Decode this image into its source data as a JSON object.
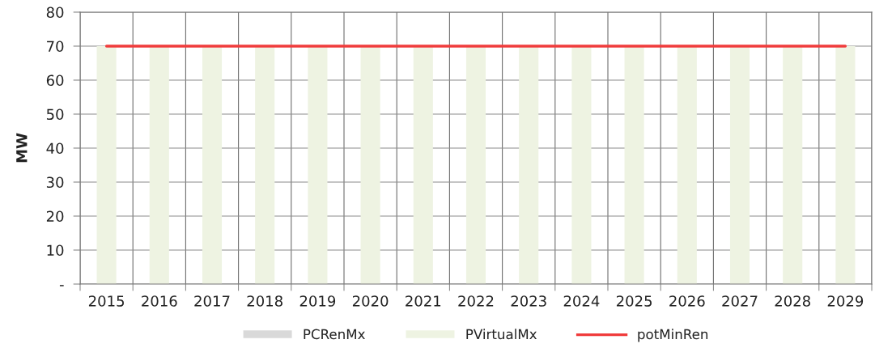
{
  "chart_data": {
    "type": "bar",
    "stacked": true,
    "ylabel": "MW",
    "categories": [
      "2015",
      "2016",
      "2017",
      "2018",
      "2019",
      "2020",
      "2021",
      "2022",
      "2023",
      "2024",
      "2025",
      "2026",
      "2027",
      "2028",
      "2029"
    ],
    "series": [
      {
        "name": "PCRenMx",
        "color": "#d9d9d9",
        "values": [
          0,
          0,
          0,
          0,
          0,
          0,
          0,
          0,
          0,
          0,
          0,
          0,
          0,
          0,
          0
        ]
      },
      {
        "name": "PVirtualMx",
        "color": "#eef3e2",
        "values": [
          70,
          70,
          70,
          70,
          70,
          70,
          70,
          70,
          70,
          70,
          70,
          70,
          70,
          70,
          70
        ]
      },
      {
        "name": "potMinRen",
        "type": "line",
        "color": "#f03c3c",
        "values": [
          70,
          70,
          70,
          70,
          70,
          70,
          70,
          70,
          70,
          70,
          70,
          70,
          70,
          70,
          70
        ]
      }
    ],
    "ylim": [
      0,
      80
    ],
    "yticks": [
      {
        "value": 0,
        "label": "-"
      },
      10,
      20,
      30,
      40,
      50,
      60,
      70,
      80
    ],
    "grid": true,
    "legend": "bottom",
    "marker": "none",
    "line_style": "solid"
  }
}
